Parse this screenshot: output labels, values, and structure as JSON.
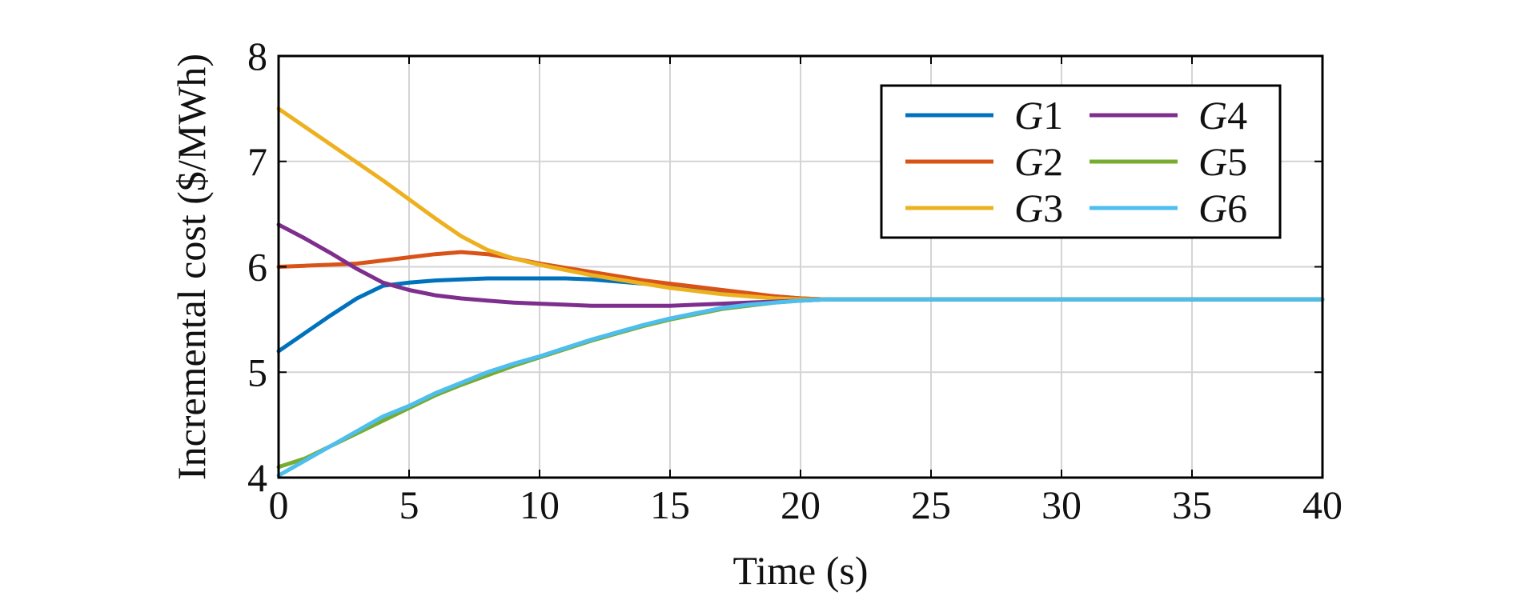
{
  "chart_data": {
    "type": "line",
    "title": "",
    "xlabel": "Time (s)",
    "ylabel": "Incremental cost ($/MWh)",
    "xlim": [
      0,
      40
    ],
    "ylim": [
      4,
      8
    ],
    "xticks": [
      0,
      5,
      10,
      15,
      20,
      25,
      30,
      35,
      40
    ],
    "yticks": [
      4,
      5,
      6,
      7,
      8
    ],
    "grid": true,
    "legend_position": "top-right",
    "legend_columns": 2,
    "series": [
      {
        "name": "G1",
        "name_letter": "G",
        "name_number": "1",
        "color": "#0072BD",
        "points": [
          [
            0,
            5.2
          ],
          [
            1,
            5.37
          ],
          [
            2,
            5.54
          ],
          [
            3,
            5.7
          ],
          [
            4,
            5.82
          ],
          [
            5,
            5.85
          ],
          [
            6,
            5.87
          ],
          [
            7,
            5.88
          ],
          [
            8,
            5.89
          ],
          [
            9,
            5.89
          ],
          [
            10,
            5.89
          ],
          [
            11,
            5.89
          ],
          [
            12,
            5.88
          ],
          [
            13,
            5.86
          ],
          [
            14,
            5.84
          ],
          [
            15,
            5.82
          ],
          [
            16,
            5.79
          ],
          [
            17,
            5.76
          ],
          [
            18,
            5.74
          ],
          [
            19,
            5.72
          ],
          [
            20,
            5.7
          ],
          [
            21,
            5.69
          ],
          [
            25,
            5.69
          ],
          [
            30,
            5.69
          ],
          [
            35,
            5.69
          ],
          [
            40,
            5.69
          ]
        ]
      },
      {
        "name": "G2",
        "name_letter": "G",
        "name_number": "2",
        "color": "#D95319",
        "points": [
          [
            0,
            6.0
          ],
          [
            1,
            6.01
          ],
          [
            2,
            6.02
          ],
          [
            3,
            6.03
          ],
          [
            4,
            6.06
          ],
          [
            5,
            6.09
          ],
          [
            6,
            6.12
          ],
          [
            7,
            6.14
          ],
          [
            8,
            6.12
          ],
          [
            9,
            6.08
          ],
          [
            10,
            6.03
          ],
          [
            11,
            5.99
          ],
          [
            12,
            5.95
          ],
          [
            13,
            5.91
          ],
          [
            14,
            5.87
          ],
          [
            15,
            5.84
          ],
          [
            16,
            5.81
          ],
          [
            17,
            5.78
          ],
          [
            18,
            5.75
          ],
          [
            19,
            5.72
          ],
          [
            20,
            5.7
          ],
          [
            21,
            5.69
          ],
          [
            25,
            5.69
          ],
          [
            30,
            5.69
          ],
          [
            35,
            5.69
          ],
          [
            40,
            5.69
          ]
        ]
      },
      {
        "name": "G3",
        "name_letter": "G",
        "name_number": "3",
        "color": "#EDB120",
        "points": [
          [
            0,
            7.5
          ],
          [
            1,
            7.33
          ],
          [
            2,
            7.16
          ],
          [
            3,
            6.99
          ],
          [
            4,
            6.82
          ],
          [
            5,
            6.64
          ],
          [
            6,
            6.46
          ],
          [
            7,
            6.29
          ],
          [
            8,
            6.16
          ],
          [
            9,
            6.08
          ],
          [
            10,
            6.02
          ],
          [
            11,
            5.97
          ],
          [
            12,
            5.92
          ],
          [
            13,
            5.88
          ],
          [
            14,
            5.84
          ],
          [
            15,
            5.8
          ],
          [
            16,
            5.77
          ],
          [
            17,
            5.74
          ],
          [
            18,
            5.72
          ],
          [
            19,
            5.7
          ],
          [
            20,
            5.69
          ],
          [
            21,
            5.69
          ],
          [
            25,
            5.69
          ],
          [
            30,
            5.69
          ],
          [
            35,
            5.69
          ],
          [
            40,
            5.69
          ]
        ]
      },
      {
        "name": "G4",
        "name_letter": "G",
        "name_number": "4",
        "color": "#7E2F8E",
        "points": [
          [
            0,
            6.4
          ],
          [
            1,
            6.27
          ],
          [
            2,
            6.13
          ],
          [
            3,
            5.98
          ],
          [
            4,
            5.85
          ],
          [
            5,
            5.78
          ],
          [
            6,
            5.73
          ],
          [
            7,
            5.7
          ],
          [
            8,
            5.68
          ],
          [
            9,
            5.66
          ],
          [
            10,
            5.65
          ],
          [
            11,
            5.64
          ],
          [
            12,
            5.63
          ],
          [
            13,
            5.63
          ],
          [
            14,
            5.63
          ],
          [
            15,
            5.63
          ],
          [
            16,
            5.64
          ],
          [
            17,
            5.65
          ],
          [
            18,
            5.66
          ],
          [
            19,
            5.67
          ],
          [
            20,
            5.68
          ],
          [
            21,
            5.69
          ],
          [
            25,
            5.69
          ],
          [
            30,
            5.69
          ],
          [
            35,
            5.69
          ],
          [
            40,
            5.69
          ]
        ]
      },
      {
        "name": "G5",
        "name_letter": "G",
        "name_number": "5",
        "color": "#77AC30",
        "points": [
          [
            0,
            4.1
          ],
          [
            1,
            4.18
          ],
          [
            2,
            4.3
          ],
          [
            3,
            4.42
          ],
          [
            4,
            4.54
          ],
          [
            5,
            4.66
          ],
          [
            6,
            4.78
          ],
          [
            7,
            4.88
          ],
          [
            8,
            4.97
          ],
          [
            9,
            5.06
          ],
          [
            10,
            5.14
          ],
          [
            11,
            5.22
          ],
          [
            12,
            5.3
          ],
          [
            13,
            5.37
          ],
          [
            14,
            5.44
          ],
          [
            15,
            5.5
          ],
          [
            16,
            5.55
          ],
          [
            17,
            5.6
          ],
          [
            18,
            5.63
          ],
          [
            19,
            5.66
          ],
          [
            20,
            5.68
          ],
          [
            21,
            5.69
          ],
          [
            25,
            5.69
          ],
          [
            30,
            5.69
          ],
          [
            35,
            5.69
          ],
          [
            40,
            5.69
          ]
        ]
      },
      {
        "name": "G6",
        "name_letter": "G",
        "name_number": "6",
        "color": "#4DBEEE",
        "points": [
          [
            0,
            4.02
          ],
          [
            1,
            4.16
          ],
          [
            2,
            4.3
          ],
          [
            3,
            4.44
          ],
          [
            4,
            4.58
          ],
          [
            5,
            4.68
          ],
          [
            6,
            4.8
          ],
          [
            7,
            4.9
          ],
          [
            8,
            5.0
          ],
          [
            9,
            5.08
          ],
          [
            10,
            5.15
          ],
          [
            11,
            5.23
          ],
          [
            12,
            5.31
          ],
          [
            13,
            5.38
          ],
          [
            14,
            5.45
          ],
          [
            15,
            5.51
          ],
          [
            16,
            5.56
          ],
          [
            17,
            5.61
          ],
          [
            18,
            5.64
          ],
          [
            19,
            5.66
          ],
          [
            20,
            5.68
          ],
          [
            21,
            5.69
          ],
          [
            25,
            5.69
          ],
          [
            30,
            5.69
          ],
          [
            35,
            5.69
          ],
          [
            40,
            5.69
          ]
        ]
      }
    ]
  }
}
